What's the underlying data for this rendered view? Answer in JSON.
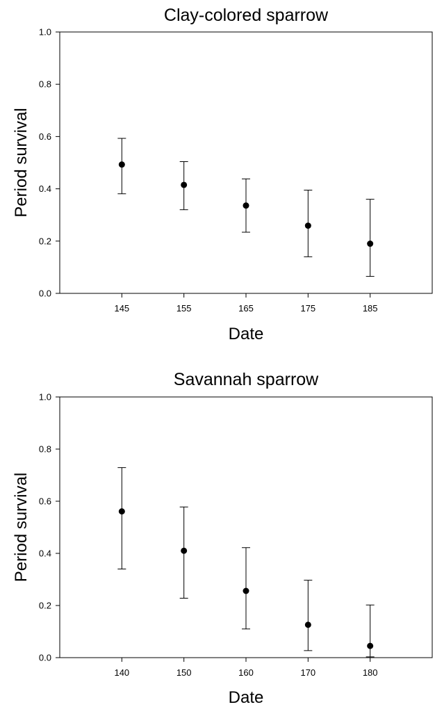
{
  "chart_data": [
    {
      "type": "scatter",
      "title": "Clay-colored sparrow",
      "xlabel": "Date",
      "ylabel": "Period survival",
      "xlim": [
        135,
        195
      ],
      "ylim": [
        0,
        1
      ],
      "x_ticks": [
        "145",
        "155",
        "165",
        "175",
        "185"
      ],
      "y_ticks": [
        "0.0",
        "0.2",
        "0.4",
        "0.6",
        "0.8",
        "1.0"
      ],
      "grid": false,
      "legend": "none",
      "series": [
        {
          "x": [
            145,
            155,
            165,
            175,
            185
          ],
          "y": [
            0.493,
            0.415,
            0.336,
            0.259,
            0.19
          ],
          "error_lower": [
            0.381,
            0.32,
            0.234,
            0.14,
            0.065
          ],
          "error_upper": [
            0.593,
            0.504,
            0.438,
            0.395,
            0.36
          ]
        }
      ]
    },
    {
      "type": "scatter",
      "title": "Savannah sparrow",
      "xlabel": "Date",
      "ylabel": "Period survival",
      "xlim": [
        130,
        190
      ],
      "ylim": [
        0,
        1
      ],
      "x_ticks": [
        "140",
        "150",
        "160",
        "170",
        "180"
      ],
      "y_ticks": [
        "0.0",
        "0.2",
        "0.4",
        "0.6",
        "0.8",
        "1.0"
      ],
      "grid": false,
      "legend": "none",
      "series": [
        {
          "x": [
            140,
            150,
            160,
            170,
            180
          ],
          "y": [
            0.561,
            0.41,
            0.256,
            0.126,
            0.045
          ],
          "error_lower": [
            0.34,
            0.228,
            0.11,
            0.027,
            0.003
          ],
          "error_upper": [
            0.729,
            0.578,
            0.422,
            0.297,
            0.202
          ]
        }
      ]
    }
  ]
}
